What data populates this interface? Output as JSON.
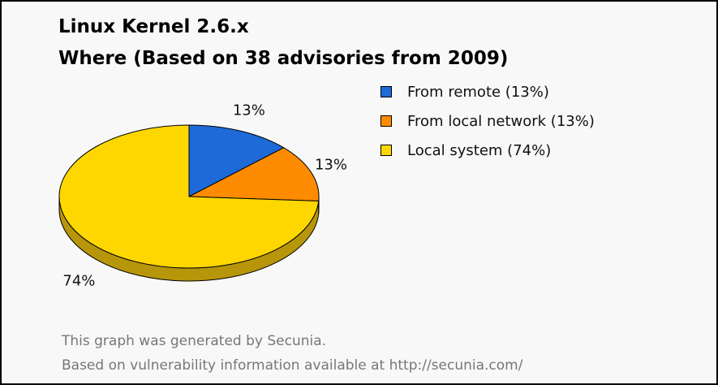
{
  "chart_data": {
    "type": "pie",
    "title": "Linux Kernel 2.6.x",
    "subtitle": "Where (Based on 38 advisories from 2009)",
    "slices": [
      {
        "label": "From remote (13%)",
        "value": 13,
        "pct_label": "13%",
        "color": "#1e6ad8"
      },
      {
        "label": "From local network (13%)",
        "value": 13,
        "pct_label": "13%",
        "color": "#ff8c00"
      },
      {
        "label": "Local system (74%)",
        "value": 74,
        "pct_label": "74%",
        "color": "#ffd700"
      }
    ],
    "legend_position": "top-right"
  },
  "footer": {
    "line1": "This graph was generated by Secunia.",
    "line2": "Based on vulnerability information available at http://secunia.com/"
  }
}
